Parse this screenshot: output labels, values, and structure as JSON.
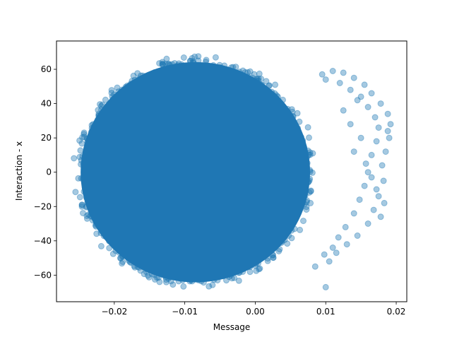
{
  "chart_data": {
    "type": "scatter",
    "title": "",
    "xlabel": "Message",
    "ylabel": "Interaction - x",
    "xlim": [
      -0.0282,
      0.0215
    ],
    "ylim": [
      -75.5,
      76.5
    ],
    "xticks": [
      -0.02,
      -0.01,
      0.0,
      0.01,
      0.02
    ],
    "xtick_labels": [
      "−0.02",
      "−0.01",
      "0.00",
      "0.01",
      "0.02"
    ],
    "yticks": [
      -60,
      -40,
      -20,
      0,
      20,
      40,
      60
    ],
    "ytick_labels": [
      "−60",
      "−40",
      "−20",
      "0",
      "20",
      "40",
      "60"
    ],
    "grid": false,
    "legend": "none",
    "marker_color": "#1f77b4",
    "marker_alpha": 0.4,
    "dense_region": {
      "description_units": "data",
      "center": [
        -0.0085,
        0.0
      ],
      "x_half_width": 0.0175,
      "y_half_height": 69,
      "point_count": 3000
    },
    "series": [
      {
        "points": [
          [
            0.01,
            -67
          ],
          [
            0.0095,
            57
          ],
          [
            0.011,
            59
          ],
          [
            0.0125,
            58
          ],
          [
            0.014,
            55
          ],
          [
            0.0155,
            51
          ],
          [
            0.0165,
            46
          ],
          [
            0.0178,
            40
          ],
          [
            0.0188,
            34
          ],
          [
            0.0192,
            28
          ],
          [
            0.019,
            20
          ],
          [
            0.0185,
            12
          ],
          [
            0.018,
            4
          ],
          [
            0.0182,
            -5
          ],
          [
            0.0175,
            -14
          ],
          [
            0.0168,
            -22
          ],
          [
            0.016,
            -30
          ],
          [
            0.0145,
            -37
          ],
          [
            0.013,
            -42
          ],
          [
            0.0115,
            -47
          ],
          [
            0.0105,
            -52
          ],
          [
            0.0085,
            -55
          ],
          [
            0.015,
            44
          ],
          [
            0.016,
            38
          ],
          [
            0.017,
            32
          ],
          [
            0.0175,
            26
          ],
          [
            0.0172,
            18
          ],
          [
            0.0165,
            10
          ],
          [
            0.016,
            0
          ],
          [
            0.0155,
            -8
          ],
          [
            0.0148,
            -16
          ],
          [
            0.014,
            -24
          ],
          [
            0.0128,
            -32
          ],
          [
            0.0118,
            -38
          ],
          [
            0.0135,
            48
          ],
          [
            0.0145,
            42
          ],
          [
            0.012,
            52
          ],
          [
            0.01,
            54
          ],
          [
            0.0165,
            -3
          ],
          [
            0.0172,
            -10
          ],
          [
            0.015,
            20
          ],
          [
            0.014,
            12
          ],
          [
            0.0135,
            28
          ],
          [
            0.0125,
            36
          ],
          [
            0.011,
            -44
          ],
          [
            0.0098,
            -48
          ],
          [
            0.0188,
            24
          ],
          [
            0.0183,
            -18
          ],
          [
            0.0178,
            -26
          ],
          [
            0.0157,
            5
          ]
        ]
      }
    ]
  }
}
